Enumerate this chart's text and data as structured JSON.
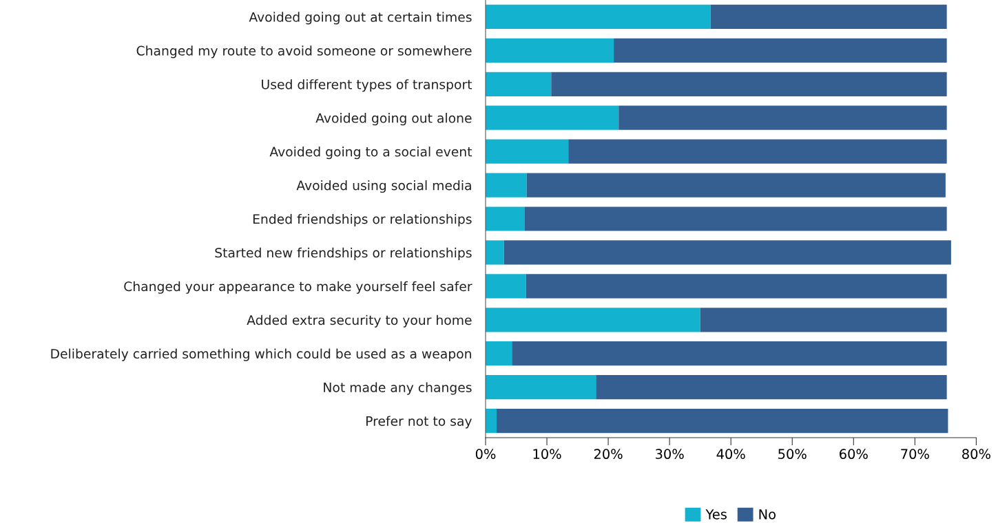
{
  "chart_data": {
    "type": "bar",
    "orientation": "horizontal",
    "stacked": true,
    "categories": [
      "Avoided going out at certain times",
      "Changed my route to avoid someone or somewhere",
      "Used different types of transport",
      "Avoided going out alone",
      "Avoided going to a social event",
      "Avoided using social media",
      "Ended friendships or relationships",
      "Started new friendships or relationships",
      "Changed your appearance to make yourself feel safer",
      "Added extra security to your home",
      "Deliberately carried something which could be used as a weapon",
      "Not made any changes",
      "Prefer not to say"
    ],
    "series": [
      {
        "name": "Yes",
        "color": "#13b3cf",
        "values": [
          36.7,
          20.9,
          10.7,
          21.7,
          13.5,
          6.7,
          6.4,
          3.0,
          6.6,
          35.0,
          4.3,
          18.0,
          1.8
        ]
      },
      {
        "name": "No",
        "color": "#355f91",
        "values": [
          38.5,
          54.3,
          64.5,
          53.5,
          61.7,
          68.3,
          68.8,
          72.9,
          68.6,
          40.2,
          70.9,
          57.2,
          73.6
        ]
      }
    ],
    "xlim": [
      0,
      80
    ],
    "xticks": [
      {
        "value": 0,
        "label": "0%"
      },
      {
        "value": 10,
        "label": "10%"
      },
      {
        "value": 20,
        "label": "20%"
      },
      {
        "value": 30,
        "label": "30%"
      },
      {
        "value": 40,
        "label": "40%"
      },
      {
        "value": 50,
        "label": "50%"
      },
      {
        "value": 60,
        "label": "60%"
      },
      {
        "value": 70,
        "label": "70%"
      },
      {
        "value": 80,
        "label": "80%"
      }
    ],
    "grid": false,
    "legend": "bottom"
  }
}
